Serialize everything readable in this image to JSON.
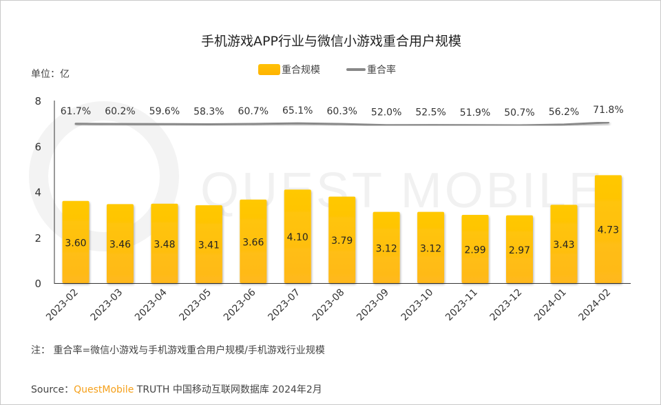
{
  "chart_data": {
    "type": "bar+line",
    "title": "手机游戏APP行业与微信小游戏重合用户规模",
    "unit_label": "单位：亿",
    "categories": [
      "2023-02",
      "2023-03",
      "2023-04",
      "2023-05",
      "2023-06",
      "2023-07",
      "2023-08",
      "2023-09",
      "2023-10",
      "2023-11",
      "2023-12",
      "2024-01",
      "2024-02"
    ],
    "series": [
      {
        "name": "重合规模",
        "type": "bar",
        "color": "#ffc107",
        "values": [
          3.6,
          3.46,
          3.48,
          3.41,
          3.66,
          4.1,
          3.79,
          3.12,
          3.12,
          2.99,
          2.97,
          3.43,
          4.73
        ],
        "labels": [
          "3.60",
          "3.46",
          "3.48",
          "3.41",
          "3.66",
          "4.10",
          "3.79",
          "3.12",
          "3.12",
          "2.99",
          "2.97",
          "3.43",
          "4.73"
        ]
      },
      {
        "name": "重合率",
        "type": "line",
        "color": "#888888",
        "values": [
          61.7,
          60.2,
          59.6,
          58.3,
          60.7,
          65.1,
          60.3,
          52.0,
          52.5,
          51.9,
          50.7,
          56.2,
          71.8
        ],
        "labels": [
          "61.7%",
          "60.2%",
          "59.6%",
          "58.3%",
          "60.7%",
          "65.1%",
          "60.3%",
          "52.0%",
          "52.5%",
          "51.9%",
          "50.7%",
          "56.2%",
          "71.8%"
        ]
      }
    ],
    "yticks": [
      "0",
      "2",
      "4",
      "6",
      "8"
    ],
    "ylim": [
      0,
      8
    ],
    "grid": false,
    "legend": "top"
  },
  "note": "注：   重合率=微信小游戏与手机游戏重合用户规模/手机游戏行业规模",
  "source": {
    "prefix": "Source：",
    "brand": "QuestMobile",
    "rest": " TRUTH 中国移动互联网数据库 2024年2月"
  },
  "watermark": "QUEST MOBILE"
}
